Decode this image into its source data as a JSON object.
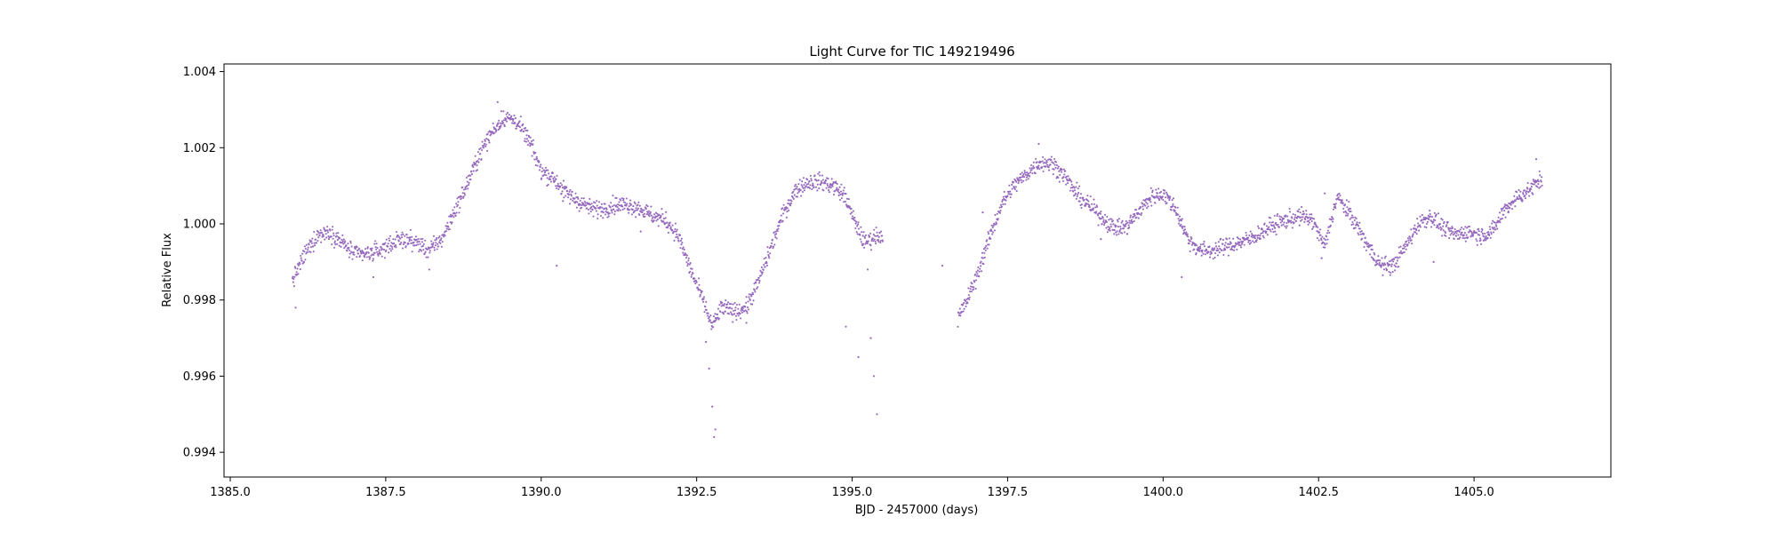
{
  "chart_data": {
    "type": "scatter",
    "title": "Light Curve for TIC 149219496",
    "xlabel": "BJD - 2457000 (days)",
    "ylabel": "Relative Flux",
    "xlim": [
      1384.9,
      1407.2
    ],
    "ylim": [
      0.99335,
      1.0042
    ],
    "xticks": [
      1385.0,
      1387.5,
      1390.0,
      1392.5,
      1395.0,
      1397.5,
      1400.0,
      1402.5,
      1405.0
    ],
    "xtick_labels": [
      "1385.0",
      "1387.5",
      "1390.0",
      "1392.5",
      "1395.0",
      "1397.5",
      "1400.0",
      "1402.5",
      "1405.0"
    ],
    "yticks": [
      0.994,
      0.996,
      0.998,
      1.0,
      1.002,
      1.004
    ],
    "ytick_labels": [
      "0.994",
      "0.996",
      "0.998",
      "1.000",
      "1.002",
      "1.004"
    ],
    "grid": false,
    "marker_color": "#9467bd",
    "series": [
      {
        "x": [
          1386.0,
          1386.2,
          1386.4,
          1386.6,
          1386.8,
          1387.0,
          1387.2,
          1387.4,
          1387.6,
          1387.8,
          1388.0,
          1388.2,
          1388.4,
          1388.6,
          1388.8,
          1389.0,
          1389.2,
          1389.4,
          1389.6,
          1389.8,
          1390.0,
          1390.2,
          1390.4,
          1390.6,
          1390.8,
          1391.0,
          1391.2,
          1391.4,
          1391.6,
          1391.8,
          1392.0,
          1392.2,
          1392.4,
          1392.6,
          1392.75,
          1392.9,
          1393.1,
          1393.3,
          1393.5,
          1393.7,
          1393.9,
          1394.1,
          1394.3,
          1394.5,
          1394.7,
          1394.9,
          1395.0,
          1395.2,
          1395.4,
          1395.5
        ],
        "y": [
          0.9985,
          0.9992,
          0.9997,
          0.9998,
          0.9995,
          0.9992,
          0.9992,
          0.9993,
          0.9995,
          0.9996,
          0.9995,
          0.9993,
          0.9996,
          1.0003,
          1.001,
          1.0018,
          1.0024,
          1.0028,
          1.0027,
          1.0022,
          1.0014,
          1.0012,
          1.0008,
          1.0006,
          1.0004,
          1.0004,
          1.0005,
          1.0005,
          1.0004,
          1.0002,
          1.0001,
          0.9997,
          0.9988,
          0.998,
          0.9973,
          0.9978,
          0.9977,
          0.9978,
          0.9985,
          0.9994,
          1.0003,
          1.0009,
          1.0011,
          1.0011,
          1.001,
          1.0007,
          1.0002,
          0.9995,
          0.9997,
          0.9997
        ]
      },
      {
        "x": [
          1396.7,
          1396.85,
          1397.0,
          1397.2,
          1397.4,
          1397.6,
          1397.8,
          1398.0,
          1398.2,
          1398.4,
          1398.6,
          1398.8,
          1399.0,
          1399.2,
          1399.4,
          1399.6,
          1399.8,
          1400.0,
          1400.2,
          1400.4,
          1400.6,
          1400.8,
          1401.0,
          1401.2,
          1401.4,
          1401.6,
          1401.8,
          1402.0,
          1402.2,
          1402.4,
          1402.6,
          1402.7,
          1402.8,
          1402.9,
          1403.1,
          1403.3,
          1403.5,
          1403.7,
          1403.9,
          1404.1,
          1404.3,
          1404.5,
          1404.7,
          1404.9,
          1405.1,
          1405.3,
          1405.5,
          1405.7,
          1405.9,
          1406.1
        ],
        "y": [
          0.9975,
          0.998,
          0.9986,
          0.9996,
          1.0005,
          1.001,
          1.0013,
          1.0016,
          1.0016,
          1.0013,
          1.0008,
          1.0005,
          1.0002,
          0.9999,
          0.9999,
          1.0003,
          1.0007,
          1.0008,
          1.0004,
          0.9996,
          0.9993,
          0.9993,
          0.9994,
          0.9995,
          0.9996,
          0.9998,
          1.0,
          1.0001,
          1.0002,
          1.0001,
          0.9994,
          1.0001,
          1.0007,
          1.0005,
          1.0,
          0.9994,
          0.9989,
          0.9989,
          0.9994,
          1.0,
          1.0002,
          0.9999,
          0.9997,
          0.9998,
          0.9997,
          0.9998,
          1.0004,
          1.0007,
          1.0009,
          1.0012
        ]
      }
    ],
    "outliers": {
      "x": [
        1386.05,
        1387.3,
        1388.2,
        1389.3,
        1390.25,
        1390.35,
        1391.6,
        1392.65,
        1392.7,
        1392.75,
        1392.78,
        1392.8,
        1393.3,
        1394.9,
        1395.1,
        1395.25,
        1395.3,
        1395.35,
        1395.4,
        1396.45,
        1397.1,
        1398.0,
        1399.0,
        1400.3,
        1401.8,
        1402.55,
        1402.6,
        1404.35,
        1405.55,
        1406.0
      ],
      "y": [
        0.9978,
        0.9986,
        0.9988,
        1.0032,
        0.9989,
        1.0006,
        0.9998,
        0.9969,
        0.9962,
        0.9952,
        0.9944,
        0.9946,
        0.9974,
        0.9973,
        0.9965,
        0.9988,
        0.997,
        0.996,
        0.995,
        0.9989,
        1.0003,
        1.0021,
        0.9996,
        0.9986,
        0.9998,
        0.9991,
        1.0008,
        0.999,
        1.0003,
        1.0017
      ]
    }
  }
}
